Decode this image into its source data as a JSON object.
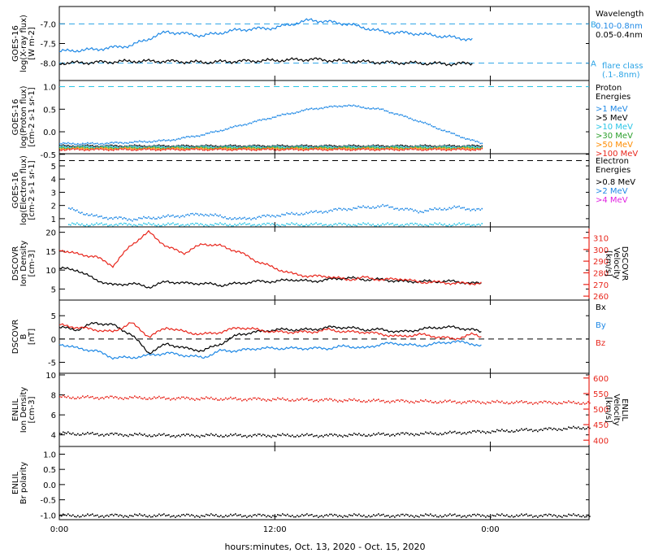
{
  "colors": {
    "black": "#000000",
    "blue": "#1e88e5",
    "cyan": "#29c5e6",
    "green": "#2ca02c",
    "orange": "#ff8c00",
    "red": "#e8261c",
    "magenta": "#e020e0"
  },
  "footer": {
    "xlabel": "hours:minutes, Oct. 13, 2020 - Oct. 15, 2020",
    "xticks": [
      {
        "x": 0,
        "label": "0:00"
      },
      {
        "x": 24,
        "label": "12:00"
      },
      {
        "x": 48,
        "label": "0:00"
      }
    ],
    "xlim": [
      0,
      59
    ]
  },
  "chart_data": [
    {
      "type": "line",
      "ylabel": [
        "GOES-16",
        "log(X-ray flux)",
        "[W m-2]"
      ],
      "ylim": [
        -8.4,
        -6.6
      ],
      "yticks": [
        "-7.0",
        "-7.5",
        "-8.0"
      ],
      "ytick_values": [
        -7.0,
        -7.5,
        -8.0
      ],
      "reference_lines": [
        {
          "y": -7.0,
          "label": "B",
          "color": "#29a3e6"
        },
        {
          "y": -8.0,
          "label": "A",
          "color": "#29a3e6"
        }
      ],
      "legend": {
        "title": "Wavelength",
        "entries": [
          {
            "label": "0.10-0.8nm",
            "color": "#1e88e5"
          },
          {
            "label": "0.05-0.4nm",
            "color": "#000000"
          }
        ],
        "note": [
          "flare class",
          "(.1-.8nm)"
        ]
      },
      "x": [
        0,
        4,
        8,
        12,
        16,
        20,
        24,
        28,
        32,
        36,
        40,
        44,
        46
      ],
      "series": [
        {
          "name": "0.10-0.8nm",
          "values": [
            -7.7,
            -7.65,
            -7.55,
            -7.2,
            -7.3,
            -7.15,
            -7.1,
            -6.9,
            -7.0,
            -7.2,
            -7.25,
            -7.35,
            -7.4
          ]
        },
        {
          "name": "0.05-0.4nm",
          "values": [
            -8.0,
            -7.98,
            -7.95,
            -7.95,
            -7.98,
            -7.95,
            -7.93,
            -7.9,
            -7.95,
            -7.98,
            -8.0,
            -8.02,
            -8.0
          ]
        }
      ]
    },
    {
      "type": "scatter",
      "ylabel": [
        "GOES-16",
        "log(Proton flux)",
        "[cm-2 s-1 sr-1]"
      ],
      "ylim": [
        -0.45,
        1.1
      ],
      "yticks": [
        "1.0",
        "0.5",
        "0.0",
        "-0.5"
      ],
      "ytick_values": [
        1.0,
        0.5,
        0.0,
        -0.5
      ],
      "reference_lines": [
        {
          "y": 1.0,
          "color": "#29c5e6"
        }
      ],
      "legend": {
        "title": [
          "Proton",
          "Energies"
        ],
        "entries": [
          {
            "label": ">1 MeV",
            "color": "#1e88e5"
          },
          {
            "label": ">5 MeV",
            "color": "#000000"
          },
          {
            "label": ">10 MeV",
            "color": "#29c5e6"
          },
          {
            "label": ">30 MeV",
            "color": "#2ca02c"
          },
          {
            "label": ">50 MeV",
            "color": "#ff8c00"
          },
          {
            "label": ">100 MeV",
            "color": "#e8261c"
          }
        ]
      },
      "x": [
        0,
        4,
        8,
        12,
        16,
        20,
        24,
        28,
        32,
        36,
        40,
        44,
        47
      ],
      "series": [
        {
          "name": ">1 MeV",
          "values": [
            -0.25,
            -0.25,
            -0.22,
            -0.18,
            -0.05,
            0.15,
            0.35,
            0.52,
            0.6,
            0.5,
            0.25,
            -0.05,
            -0.25
          ]
        },
        {
          "name": ">5 MeV",
          "values": [
            -0.3,
            -0.3,
            -0.3,
            -0.3,
            -0.3,
            -0.3,
            -0.3,
            -0.3,
            -0.3,
            -0.3,
            -0.3,
            -0.3,
            -0.3
          ]
        },
        {
          "name": ">10 MeV",
          "values": [
            -0.32,
            -0.32,
            -0.32,
            -0.32,
            -0.32,
            -0.32,
            -0.32,
            -0.32,
            -0.32,
            -0.32,
            -0.32,
            -0.32,
            -0.32
          ]
        },
        {
          "name": ">30 MeV",
          "values": [
            -0.34,
            -0.34,
            -0.34,
            -0.34,
            -0.34,
            -0.34,
            -0.34,
            -0.34,
            -0.34,
            -0.34,
            -0.34,
            -0.34,
            -0.34
          ]
        },
        {
          "name": ">50 MeV",
          "values": [
            -0.36,
            -0.36,
            -0.36,
            -0.36,
            -0.36,
            -0.36,
            -0.36,
            -0.36,
            -0.36,
            -0.36,
            -0.36,
            -0.36,
            -0.36
          ]
        },
        {
          "name": ">100 MeV",
          "values": [
            -0.38,
            -0.38,
            -0.38,
            -0.38,
            -0.38,
            -0.38,
            -0.38,
            -0.38,
            -0.38,
            -0.38,
            -0.38,
            -0.38,
            -0.38
          ]
        }
      ]
    },
    {
      "type": "scatter",
      "ylabel": [
        "GOES-16",
        "log(Electron flux)",
        "[cm-2 s-1 sr-1]"
      ],
      "ylim": [
        0.5,
        5.8
      ],
      "yticks": [
        "5",
        "4",
        "3",
        "2",
        "1"
      ],
      "ytick_values": [
        5,
        4,
        3,
        2,
        1
      ],
      "reference_lines": [
        {
          "y": 5.4,
          "color": "#000000"
        }
      ],
      "legend": {
        "title": [
          "Electron",
          "Energies"
        ],
        "entries": [
          {
            "label": ">0.8 MeV",
            "color": "#000000"
          },
          {
            "label": ">2 MeV",
            "color": "#1e88e5"
          },
          {
            "label": ">4 MeV",
            "color": "#e020e0"
          }
        ]
      },
      "x": [
        1,
        4,
        8,
        12,
        16,
        20,
        24,
        28,
        32,
        36,
        40,
        44,
        47
      ],
      "series": [
        {
          "name": ">0.8 MeV",
          "values": [
            0.6,
            0.6,
            0.6,
            0.6,
            0.6,
            0.6,
            0.6,
            0.6,
            0.6,
            0.6,
            0.6,
            0.6,
            0.6
          ]
        },
        {
          "name": ">2 MeV",
          "values": [
            1.8,
            1.2,
            1.0,
            1.2,
            1.4,
            1.0,
            1.3,
            1.5,
            1.8,
            2.0,
            1.6,
            1.9,
            1.7
          ]
        }
      ]
    },
    {
      "type": "line",
      "ylabel": [
        "DSCOVR",
        "Ion Density",
        "[cm-3]"
      ],
      "ylim": [
        2.5,
        21
      ],
      "yticks": [
        "20",
        "15",
        "10",
        "5"
      ],
      "ytick_values": [
        20,
        15,
        10,
        5
      ],
      "right_axis": {
        "label": [
          "DSCOVR",
          "Velocity",
          "[km/s]"
        ],
        "ylim": [
          258,
          318
        ],
        "ticks": [
          "310",
          "300",
          "290",
          "280",
          "270",
          "260"
        ],
        "tick_values": [
          310,
          300,
          290,
          280,
          270,
          260
        ],
        "color": "#e8261c"
      },
      "x": [
        0,
        2,
        4,
        6,
        8,
        10,
        12,
        14,
        16,
        18,
        20,
        22,
        24,
        26,
        28,
        30,
        32,
        34,
        36,
        38,
        40,
        42,
        44,
        46,
        47
      ],
      "series": [
        {
          "name": "Density",
          "axis": "left",
          "values": [
            10.5,
            10,
            7.5,
            6,
            6.5,
            5.5,
            7,
            6.5,
            6.5,
            6,
            6.5,
            7,
            7,
            7.5,
            7,
            7.5,
            8,
            7.5,
            7.5,
            7,
            7,
            7,
            7,
            6.5,
            6.5
          ]
        },
        {
          "name": "Velocity",
          "axis": "right",
          "values": [
            300,
            296,
            294,
            286,
            304,
            315,
            302,
            297,
            305,
            303,
            298,
            290,
            284,
            279,
            277,
            277,
            274,
            276,
            274,
            275,
            272,
            272,
            271,
            271,
            271
          ]
        }
      ]
    },
    {
      "type": "line",
      "ylabel": [
        "DSCOVR",
        "B",
        "[nT]"
      ],
      "ylim": [
        -7,
        8
      ],
      "yticks": [
        "5",
        "0",
        "-5"
      ],
      "ytick_values": [
        5,
        0,
        -5
      ],
      "reference_lines": [
        {
          "y": 0,
          "color": "#000000"
        }
      ],
      "legend": {
        "entries": [
          {
            "label": "Bx",
            "color": "#000000"
          },
          {
            "label": "By",
            "color": "#1e88e5"
          },
          {
            "label": "Bz",
            "color": "#e8261c"
          }
        ]
      },
      "x": [
        0,
        2,
        4,
        6,
        8,
        10,
        12,
        14,
        16,
        18,
        20,
        22,
        24,
        26,
        28,
        30,
        32,
        34,
        36,
        38,
        40,
        42,
        44,
        46,
        47
      ],
      "series": [
        {
          "name": "Bx",
          "values": [
            2.5,
            2,
            3.5,
            3,
            1,
            -3,
            -1,
            -2,
            -2.5,
            -1,
            1,
            1.5,
            2,
            2,
            2,
            2.5,
            2.5,
            2,
            2,
            1.5,
            2,
            2.5,
            2.5,
            2,
            1.5
          ]
        },
        {
          "name": "By",
          "values": [
            -1,
            -2,
            -2.5,
            -4,
            -4,
            -3.5,
            -3,
            -3.5,
            -4,
            -2.5,
            -2.5,
            -2,
            -2,
            -2,
            -2,
            -2,
            -1.5,
            -2,
            -1,
            -1,
            -1.5,
            -1,
            -0.5,
            -1,
            -1.5
          ]
        },
        {
          "name": "Bz",
          "values": [
            3,
            2.5,
            2,
            1.5,
            3.5,
            0.5,
            2.5,
            1.5,
            1,
            1.5,
            2.5,
            2,
            1.5,
            1.5,
            1.5,
            2,
            1.5,
            1.5,
            1,
            0.5,
            1,
            0.5,
            0,
            1,
            0.5
          ]
        }
      ]
    },
    {
      "type": "line",
      "ylabel": [
        "ENLIL",
        "Ion Density",
        "[cm-3]"
      ],
      "ylim": [
        3,
        10
      ],
      "yticks": [
        "10",
        "8",
        "6",
        "4"
      ],
      "ytick_values": [
        10,
        8,
        6,
        4
      ],
      "right_axis": {
        "label": [
          "ENLIL",
          "Velocity",
          "[km/s]"
        ],
        "ylim": [
          385,
          610
        ],
        "ticks": [
          "600",
          "550",
          "500",
          "450",
          "400"
        ],
        "tick_values": [
          600,
          550,
          500,
          450,
          400
        ],
        "color": "#e8261c"
      },
      "x": [
        0,
        6,
        12,
        18,
        24,
        30,
        36,
        42,
        48,
        54,
        59
      ],
      "series": [
        {
          "name": "Density",
          "axis": "left",
          "values": [
            4.2,
            4.1,
            4.0,
            4.0,
            4.0,
            4.0,
            4.1,
            4.2,
            4.4,
            4.6,
            4.8
          ]
        },
        {
          "name": "Velocity",
          "axis": "right",
          "values": [
            540,
            539,
            537,
            535,
            533,
            531,
            528,
            526,
            524,
            523,
            522
          ]
        }
      ]
    },
    {
      "type": "line",
      "ylabel": [
        "ENLIL",
        "Br polarity"
      ],
      "ylim": [
        -1.1,
        1.2
      ],
      "yticks": [
        "1.0",
        "0.5",
        "0.0",
        "-0.5",
        "-1.0"
      ],
      "ytick_values": [
        1.0,
        0.5,
        0.0,
        -0.5,
        -1.0
      ],
      "x": [
        0,
        59
      ],
      "series": [
        {
          "name": "Br polarity",
          "values": [
            -1,
            -1
          ]
        }
      ]
    }
  ]
}
